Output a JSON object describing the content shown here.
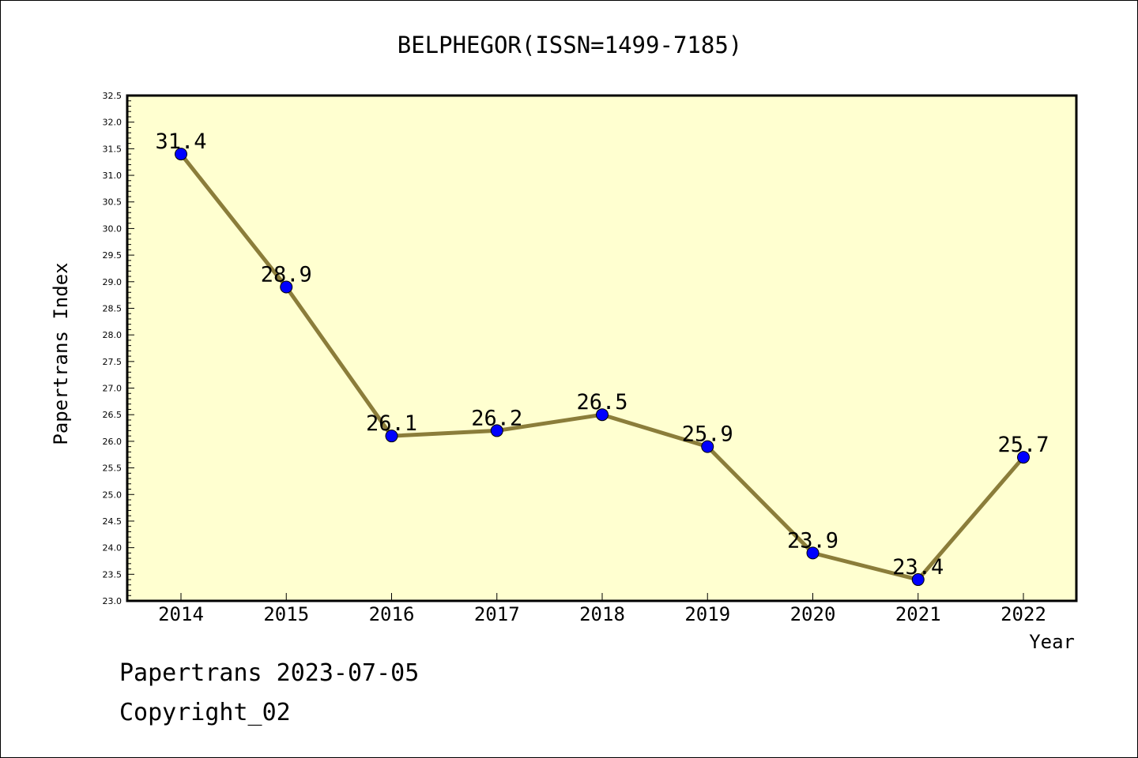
{
  "chart_data": {
    "type": "line",
    "title": "BELPHEGOR(ISSN=1499-7185)",
    "xlabel": "Year",
    "ylabel": "Papertrans Index",
    "categories": [
      "2014",
      "2015",
      "2016",
      "2017",
      "2018",
      "2019",
      "2020",
      "2021",
      "2022"
    ],
    "series": [
      {
        "values": [
          31.4,
          28.9,
          26.1,
          26.2,
          26.5,
          25.9,
          23.9,
          23.4,
          25.7
        ],
        "labels": [
          "31.4",
          "28.9",
          "26.1",
          "26.2",
          "26.5",
          "25.9",
          "23.9",
          "23.4",
          "25.7"
        ]
      }
    ],
    "ylim": [
      23.0,
      32.5
    ],
    "yticks": [
      "23.0",
      "23.5",
      "24.0",
      "24.5",
      "25.0",
      "25.5",
      "26.0",
      "26.5",
      "27.0",
      "27.5",
      "28.0",
      "28.5",
      "29.0",
      "29.5",
      "30.0",
      "30.5",
      "31.0",
      "31.5",
      "32.0",
      "32.5"
    ],
    "grid": false,
    "colors": {
      "plot_background": "#ffffd0",
      "line": "#8b7d3a",
      "marker": "#0000ff"
    }
  },
  "footer": {
    "date_line": "Papertrans 2023-07-05",
    "copyright": "Copyright_02"
  }
}
